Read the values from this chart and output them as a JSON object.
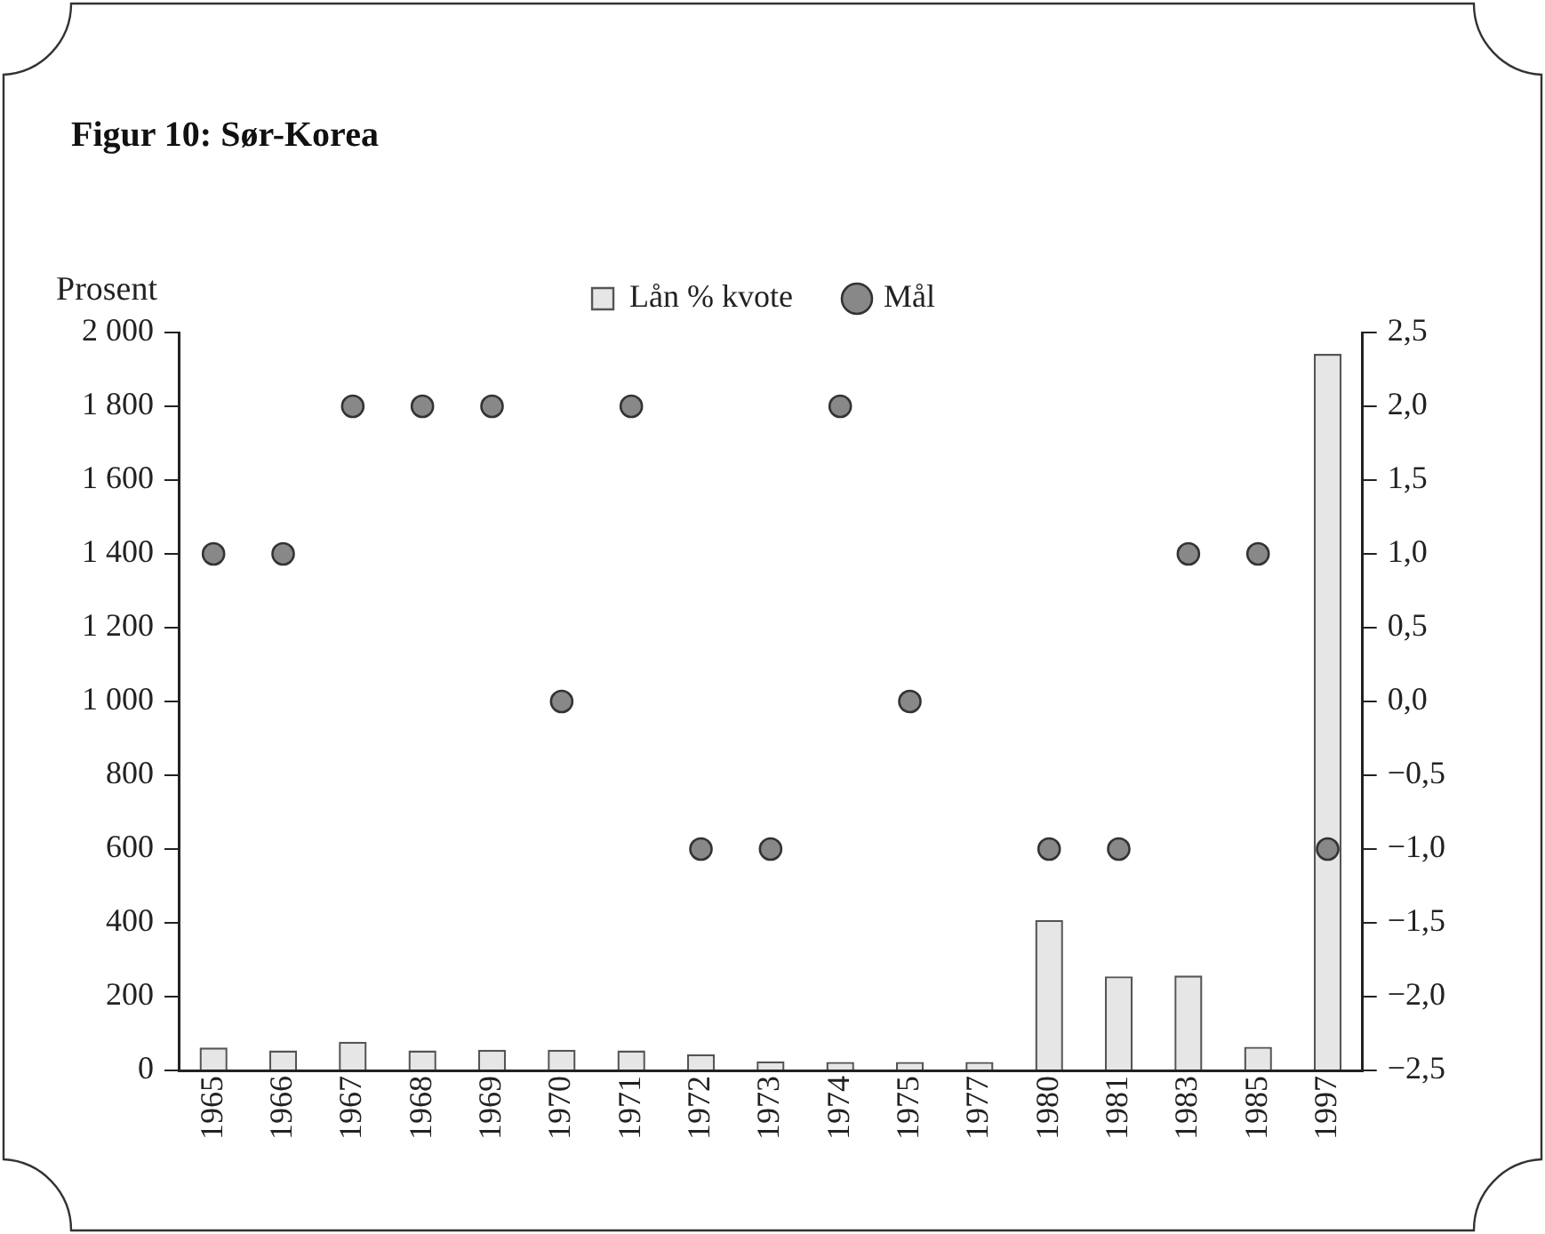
{
  "chart_data": {
    "type": "bar",
    "title": "Figur 10: Sør-Korea",
    "ylabel": "Prosent",
    "categories": [
      "1965",
      "1966",
      "1967",
      "1968",
      "1969",
      "1970",
      "1971",
      "1972",
      "1973",
      "1974",
      "1975",
      "1977",
      "1980",
      "1981",
      "1983",
      "1985",
      "1997"
    ],
    "series": [
      {
        "name": "Lån % kvote",
        "color": "#e6e6e6",
        "values": [
          62,
          54,
          78,
          54,
          56,
          56,
          54,
          44,
          25,
          23,
          23,
          23,
          408,
          255,
          257,
          64,
          1942
        ]
      },
      {
        "name": "Mål",
        "type": "scatter",
        "axis": "y2",
        "color": "#888888",
        "marker": "circle",
        "values": [
          1.0,
          1.0,
          2.0,
          2.0,
          2.0,
          0.0,
          2.0,
          -1.0,
          -1.0,
          2.0,
          0.0,
          null,
          -1.0,
          -1.0,
          1.0,
          1.0,
          -1.0
        ]
      }
    ],
    "ylim": [
      0,
      2000
    ],
    "yticks": [
      0,
      200,
      400,
      600,
      800,
      {
        "value": 1000,
        "label": "1 000"
      },
      {
        "value": 1200,
        "label": "1 200"
      },
      {
        "value": 1400,
        "label": "1 400"
      },
      {
        "value": 1600,
        "label": "1 600"
      },
      {
        "value": 1800,
        "label": "1 800"
      },
      {
        "value": 2000,
        "label": "2 000"
      }
    ],
    "y2lim": [
      -2.5,
      2.5
    ],
    "y2ticks": [
      {
        "value": -2.5,
        "label": "−2,5"
      },
      {
        "value": -2.0,
        "label": "−2,0"
      },
      {
        "value": -1.5,
        "label": "−1,5"
      },
      {
        "value": -1.0,
        "label": "−1,0"
      },
      {
        "value": -0.5,
        "label": "−0,5"
      },
      {
        "value": 0.0,
        "label": "0,0"
      },
      {
        "value": 0.5,
        "label": "0,5"
      },
      {
        "value": 1.0,
        "label": "1,0"
      },
      {
        "value": 1.5,
        "label": "1,5"
      },
      {
        "value": 2.0,
        "label": "2,0"
      },
      {
        "value": 2.5,
        "label": "2,5"
      }
    ],
    "legend": "top",
    "grid": false
  }
}
